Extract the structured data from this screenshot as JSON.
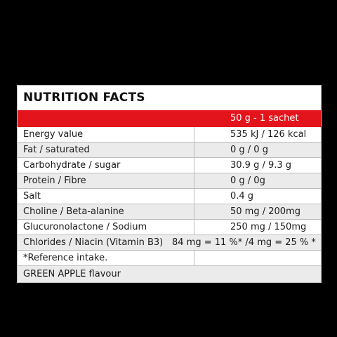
{
  "title": "NUTRITION FACTS",
  "serving": "50 g - 1 sachet",
  "rows": [
    {
      "label": "Energy value",
      "value": "535 kJ / 126 kcal"
    },
    {
      "label": "Fat / saturated",
      "value": "0 g / 0 g"
    },
    {
      "label": "Carbohydrate / sugar",
      "value": "30.9 g / 9.3 g"
    },
    {
      "label": "Protein / Fibre",
      "value": "0 g / 0g"
    },
    {
      "label": "Salt",
      "value": "0.4 g"
    },
    {
      "label": "Choline / Beta-alanine",
      "value": "50 mg / 200mg"
    },
    {
      "label": "Glucuronolactone / Sodium",
      "value": "250 mg / 150mg"
    },
    {
      "label": "Chlorides / Niacin (Vitamin B3)",
      "value": "84 mg = 11 %* /4 mg = 25 % *"
    }
  ],
  "note": "*Reference intake.",
  "flavour": "GREEN APPLE flavour",
  "colors": {
    "accent": "#e3141b",
    "shade": "#ebebeb",
    "border": "#bdbdbd"
  }
}
